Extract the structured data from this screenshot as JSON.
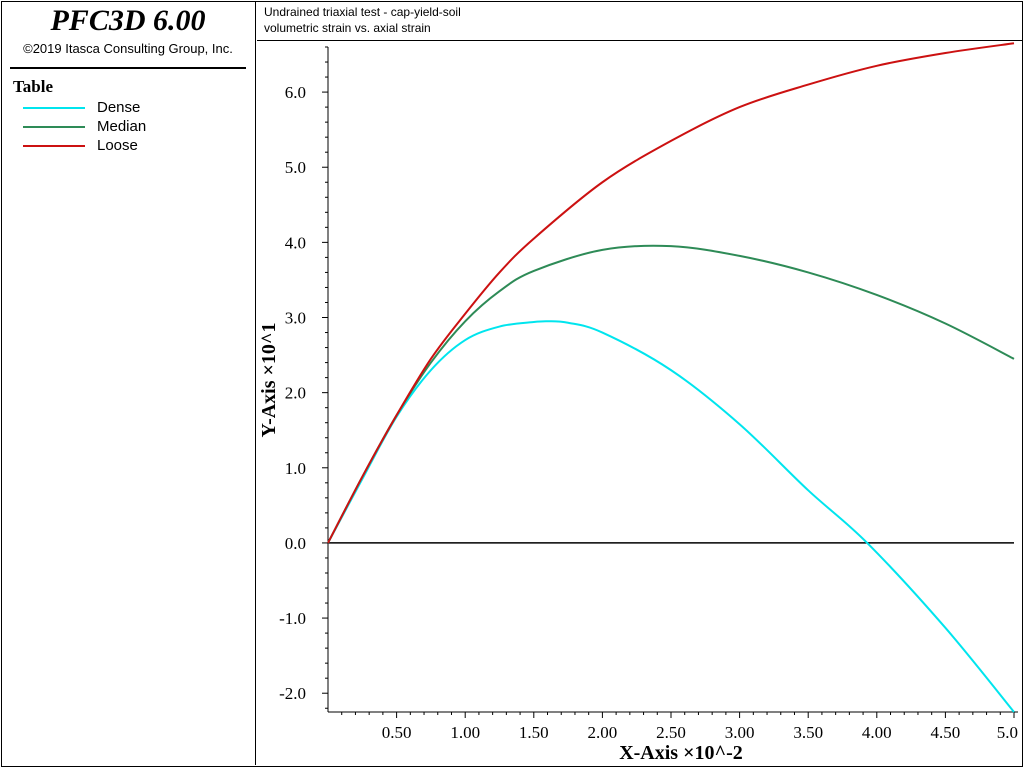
{
  "app": {
    "title": "PFC3D 6.00",
    "copyright": "©2019 Itasca Consulting Group, Inc."
  },
  "legend": {
    "title": "Table",
    "items": [
      {
        "label": "Dense",
        "color": "#00e5ee"
      },
      {
        "label": "Median",
        "color": "#2e8b57"
      },
      {
        "label": "Loose",
        "color": "#cc1111"
      }
    ]
  },
  "header": {
    "line1": "Undrained triaxial test - cap-yield-soil",
    "line2": "volumetric strain vs. axial strain"
  },
  "chart_data": {
    "type": "line",
    "xlabel": "X-Axis ×10^-2",
    "ylabel": "Y-Axis ×10^1",
    "xlim": [
      0,
      5.0
    ],
    "ylim": [
      -2.25,
      6.6
    ],
    "x_ticks": [
      "0.50",
      "1.00",
      "1.50",
      "2.00",
      "2.50",
      "3.00",
      "3.50",
      "4.00",
      "4.50",
      "5.0"
    ],
    "y_ticks": [
      "-2.0",
      "-1.0",
      "0.0",
      "1.0",
      "2.0",
      "3.0",
      "4.0",
      "5.0",
      "6.0"
    ],
    "grid": false,
    "legend_position": "left-panel",
    "series": [
      {
        "name": "Dense",
        "color": "#00e5ee",
        "x": [
          0,
          0.25,
          0.5,
          0.75,
          1.0,
          1.25,
          1.5,
          1.6,
          1.75,
          2.0,
          2.5,
          3.0,
          3.5,
          3.93,
          4.5,
          5.0
        ],
        "y": [
          0,
          0.85,
          1.68,
          2.3,
          2.7,
          2.88,
          2.94,
          2.95,
          2.93,
          2.8,
          2.3,
          1.58,
          0.7,
          0,
          -1.13,
          -2.25
        ]
      },
      {
        "name": "Median",
        "color": "#2e8b57",
        "x": [
          0,
          0.25,
          0.5,
          0.75,
          1.0,
          1.25,
          1.5,
          2.0,
          2.5,
          3.0,
          3.5,
          4.0,
          4.5,
          5.0
        ],
        "y": [
          0,
          0.88,
          1.7,
          2.4,
          2.95,
          3.35,
          3.62,
          3.9,
          3.95,
          3.82,
          3.6,
          3.3,
          2.92,
          2.45
        ]
      },
      {
        "name": "Loose",
        "color": "#cc1111",
        "x": [
          0,
          0.25,
          0.5,
          0.75,
          1.0,
          1.25,
          1.5,
          2.0,
          2.5,
          3.0,
          3.5,
          4.0,
          4.5,
          5.0
        ],
        "y": [
          0,
          0.88,
          1.7,
          2.45,
          3.05,
          3.6,
          4.05,
          4.8,
          5.35,
          5.8,
          6.1,
          6.35,
          6.52,
          6.65
        ]
      }
    ]
  }
}
